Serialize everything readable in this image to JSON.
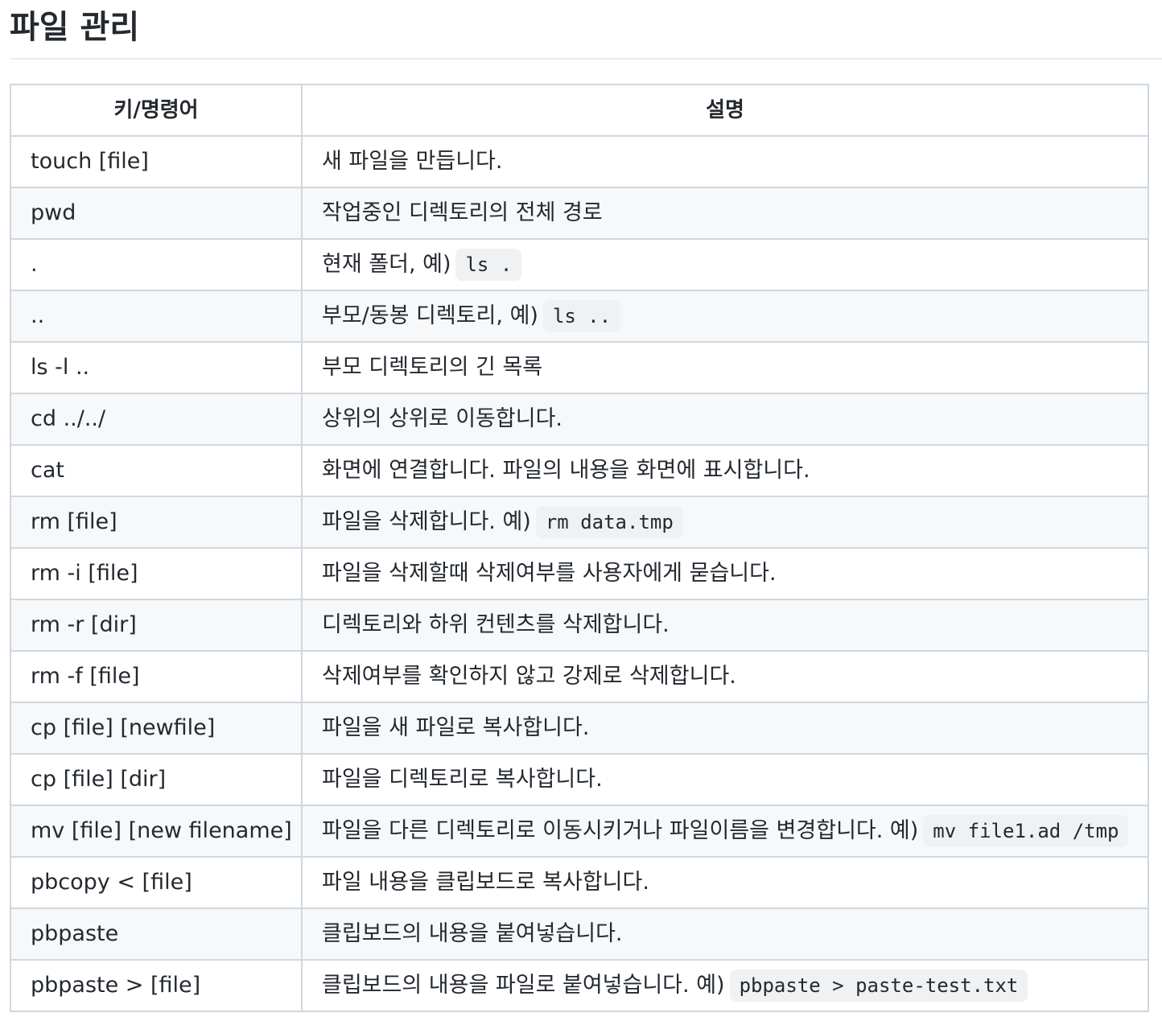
{
  "title": "파일 관리",
  "table": {
    "headers": [
      "키/명령어",
      "설명"
    ],
    "rows": [
      {
        "key": "touch [file]",
        "desc": "새 파일을 만듭니다.",
        "code": ""
      },
      {
        "key": "pwd",
        "desc": "작업중인 디렉토리의 전체 경로",
        "code": ""
      },
      {
        "key": ".",
        "desc": "현재 폴더, 예)",
        "code": "ls ."
      },
      {
        "key": "..",
        "desc": "부모/동봉 디렉토리, 예)",
        "code": "ls .."
      },
      {
        "key": "ls -l ..",
        "desc": "부모 디렉토리의 긴 목록",
        "code": ""
      },
      {
        "key": "cd ../../",
        "desc": "상위의 상위로 이동합니다.",
        "code": ""
      },
      {
        "key": "cat",
        "desc": "화면에 연결합니다. 파일의 내용을 화면에 표시합니다.",
        "code": ""
      },
      {
        "key": "rm [file]",
        "desc": "파일을 삭제합니다. 예)",
        "code": "rm data.tmp"
      },
      {
        "key": "rm -i [file]",
        "desc": "파일을 삭제할때 삭제여부를 사용자에게 묻습니다.",
        "code": ""
      },
      {
        "key": "rm -r [dir]",
        "desc": "디렉토리와 하위 컨텐츠를 삭제합니다.",
        "code": ""
      },
      {
        "key": "rm -f [file]",
        "desc": "삭제여부를 확인하지 않고 강제로 삭제합니다.",
        "code": ""
      },
      {
        "key": "cp [file] [newfile]",
        "desc": "파일을 새 파일로 복사합니다.",
        "code": ""
      },
      {
        "key": "cp [file] [dir]",
        "desc": "파일을 디렉토리로 복사합니다.",
        "code": ""
      },
      {
        "key": "mv [file] [new filename]",
        "desc": "파일을 다른 디렉토리로 이동시키거나 파일이름을 변경합니다. 예)",
        "code": "mv file1.ad /tmp"
      },
      {
        "key": "pbcopy < [file]",
        "desc": "파일 내용을 클립보드로 복사합니다.",
        "code": ""
      },
      {
        "key": "pbpaste",
        "desc": "클립보드의 내용을 붙여넣습니다.",
        "code": ""
      },
      {
        "key": "pbpaste > [file]",
        "desc": "클립보드의 내용을 파일로 붙여넣습니다. 예)",
        "code": "pbpaste > paste-test.txt"
      }
    ]
  }
}
